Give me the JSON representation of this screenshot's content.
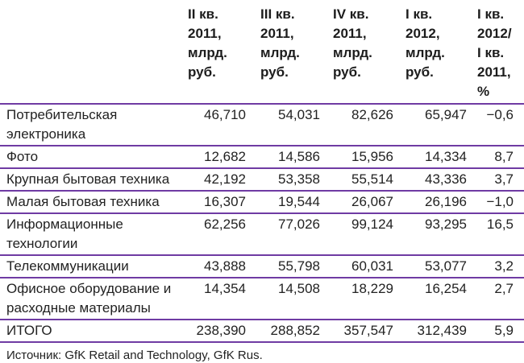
{
  "colors": {
    "rule": "#6F3BA3",
    "text": "#222222",
    "background": "#ffffff"
  },
  "table": {
    "headers": [
      "II кв.\n2011,\nмлрд.\nруб.",
      "III кв.\n2011,\nмлрд.\nруб.",
      "IV кв.\n2011,\nмлрд.\nруб.",
      "I кв.\n2012,\nмлрд.\nруб.",
      "I кв.\n2012/\nI кв.\n2011,\n%"
    ],
    "rows": [
      {
        "label": "Потребительская электроника",
        "values": [
          "46,710",
          "54,031",
          "82,626",
          "65,947",
          "−0,6"
        ]
      },
      {
        "label": "Фото",
        "values": [
          "12,682",
          "14,586",
          "15,956",
          "14,334",
          "8,7"
        ]
      },
      {
        "label": "Крупная бытовая техника",
        "values": [
          "42,192",
          "53,358",
          "55,514",
          "43,336",
          "3,7"
        ]
      },
      {
        "label": "Малая бытовая техника",
        "values": [
          "16,307",
          "19,544",
          "26,067",
          "26,196",
          "−1,0"
        ]
      },
      {
        "label": "Информационные технологии",
        "values": [
          "62,256",
          "77,026",
          "99,124",
          "93,295",
          "16,5"
        ]
      },
      {
        "label": "Телекоммуникации",
        "values": [
          "43,888",
          "55,798",
          "60,031",
          "53,077",
          "3,2"
        ]
      },
      {
        "label": "Офисное оборудование и расходные материалы",
        "values": [
          "14,354",
          "14,508",
          "18,229",
          "16,254",
          "2,7"
        ]
      },
      {
        "label": "ИТОГО",
        "values": [
          "238,390",
          "288,852",
          "357,547",
          "312,439",
          "5,9"
        ]
      }
    ]
  },
  "source": "Источник: GfK Retail and Technology, GfK Rus."
}
